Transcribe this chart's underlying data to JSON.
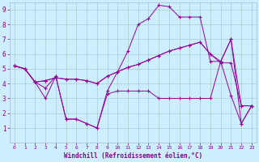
{
  "xlabel": "Windchill (Refroidissement éolien,°C)",
  "bg_color": "#cceeff",
  "grid_color": "#aacccc",
  "line_color": "#990099",
  "xlim": [
    -0.5,
    23.5
  ],
  "ylim": [
    0,
    9.5
  ],
  "xticks": [
    0,
    1,
    2,
    3,
    4,
    5,
    6,
    7,
    8,
    9,
    10,
    11,
    12,
    13,
    14,
    15,
    16,
    17,
    18,
    19,
    20,
    21,
    22,
    23
  ],
  "yticks": [
    1,
    2,
    3,
    4,
    5,
    6,
    7,
    8,
    9
  ],
  "series": [
    [
      5.2,
      5.0,
      4.1,
      3.7,
      4.5,
      1.6,
      1.6,
      1.3,
      1.0,
      3.3,
      3.5,
      3.5,
      3.5,
      3.5,
      3.0,
      3.0,
      3.0,
      3.0,
      3.0,
      3.0,
      5.5,
      3.2,
      1.3,
      2.5
    ],
    [
      5.2,
      5.0,
      4.1,
      4.2,
      4.4,
      4.3,
      4.3,
      4.2,
      4.0,
      4.5,
      4.8,
      5.1,
      5.3,
      5.6,
      5.9,
      6.2,
      6.4,
      6.6,
      6.8,
      6.0,
      5.5,
      7.0,
      2.5,
      2.5
    ],
    [
      5.2,
      5.0,
      4.1,
      4.2,
      4.4,
      4.3,
      4.3,
      4.2,
      4.0,
      4.5,
      4.8,
      5.1,
      5.3,
      5.6,
      5.9,
      6.2,
      6.4,
      6.6,
      6.8,
      6.0,
      5.4,
      5.4,
      2.5,
      2.5
    ],
    [
      5.2,
      5.0,
      4.1,
      3.0,
      4.5,
      1.6,
      1.6,
      1.3,
      1.0,
      3.5,
      4.8,
      6.2,
      8.0,
      8.4,
      9.3,
      9.2,
      8.5,
      8.5,
      8.5,
      5.5,
      5.5,
      7.0,
      1.3,
      2.5
    ]
  ]
}
